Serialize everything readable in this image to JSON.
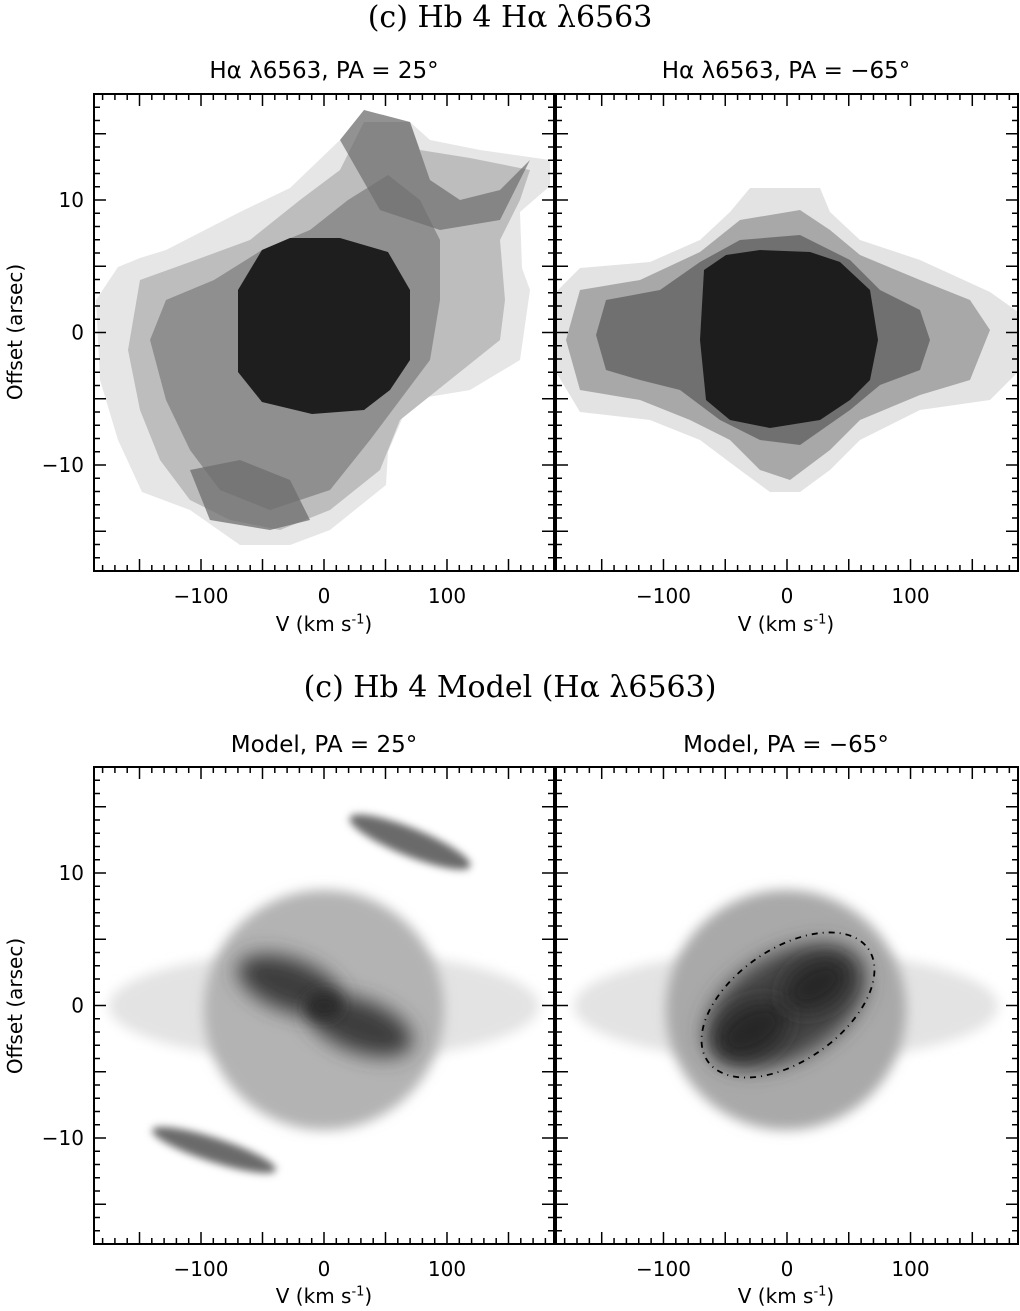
{
  "figure": {
    "top_title": "(c) Hb 4 Hα λ6563",
    "bottom_title": "(c) Hb 4 Model (Hα λ6563)"
  },
  "chart_data": [
    {
      "type": "heatmap",
      "title": "Hα λ6563, PA = 25°",
      "xlabel": "V (km s",
      "xlabel_sup": "-1",
      "xlabel_end": ")",
      "ylabel": "Offset (arsec)",
      "xlim": [
        -187,
        187
      ],
      "ylim": [
        -18,
        18
      ],
      "xticks": [
        -100,
        0,
        100
      ],
      "yticks": [
        -10,
        0,
        10
      ],
      "xtick_labels": [
        "−100",
        "0",
        "100"
      ],
      "ytick_labels": [
        "−10",
        "0",
        "10"
      ]
    },
    {
      "type": "heatmap",
      "title": "Hα λ6563, PA = −65°",
      "xlabel": "V (km s",
      "xlabel_sup": "-1",
      "xlabel_end": ")",
      "xlim": [
        -187,
        187
      ],
      "ylim": [
        -18,
        18
      ],
      "xticks": [
        -100,
        0,
        100
      ],
      "xtick_labels": [
        "−100",
        "0",
        "100"
      ]
    },
    {
      "type": "heatmap",
      "title": "Model, PA = 25°",
      "xlabel": "V (km s",
      "xlabel_sup": "-1",
      "xlabel_end": ")",
      "ylabel": "Offset (arsec)",
      "xlim": [
        -187,
        187
      ],
      "ylim": [
        -18,
        18
      ],
      "xticks": [
        -100,
        0,
        100
      ],
      "yticks": [
        -10,
        0,
        10
      ],
      "xtick_labels": [
        "−100",
        "0",
        "100"
      ],
      "ytick_labels": [
        "−10",
        "0",
        "10"
      ]
    },
    {
      "type": "heatmap",
      "title": "Model, PA = −65°",
      "xlabel": "V (km s",
      "xlabel_sup": "-1",
      "xlabel_end": ")",
      "xlim": [
        -187,
        187
      ],
      "ylim": [
        -18,
        18
      ],
      "xticks": [
        -100,
        0,
        100
      ],
      "xtick_labels": [
        "−100",
        "0",
        "100"
      ]
    }
  ]
}
